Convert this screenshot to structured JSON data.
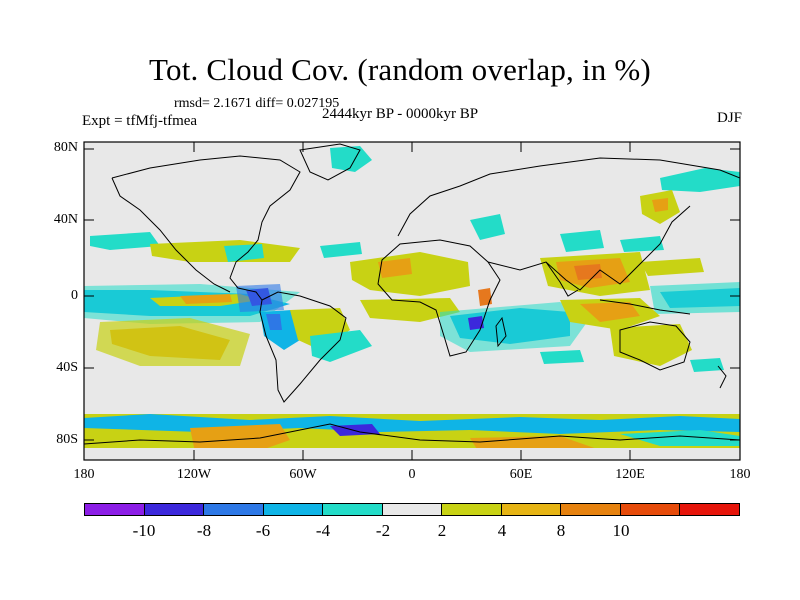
{
  "title": "Tot. Cloud Cov. (random overlap, in %)",
  "stats": "rmsd= 2.1671 diff= 0.027195",
  "experiment": "Expt = tfMfj-tfmea",
  "period": "2444kyr BP - 0000kyr BP",
  "season": "DJF",
  "lat_labels": [
    "80N",
    "40N",
    "0",
    "40S",
    "80S"
  ],
  "lon_labels": [
    "180",
    "120W",
    "60W",
    "0",
    "60E",
    "120E",
    "180"
  ],
  "colorbar": {
    "labels": [
      "-10",
      "-8",
      "-6",
      "-4",
      "-2",
      "2",
      "4",
      "8",
      "10"
    ],
    "colors": [
      "#8c1ee6",
      "#3c28dc",
      "#2d78e6",
      "#0fb4e6",
      "#23dcc8",
      "#e8e8e8",
      "#c8d214",
      "#e6b414",
      "#e6820f",
      "#e64b0a",
      "#e6140a"
    ]
  },
  "map_colors": {
    "background": "#e8e8e8",
    "teal": "#23dcc8",
    "cyan": "#0fb4e6",
    "blue": "#2d78e6",
    "navy": "#3c28dc",
    "olive": "#c8d214",
    "orange": "#e6a014",
    "darkorange": "#e6781e",
    "coast": "#000000"
  }
}
